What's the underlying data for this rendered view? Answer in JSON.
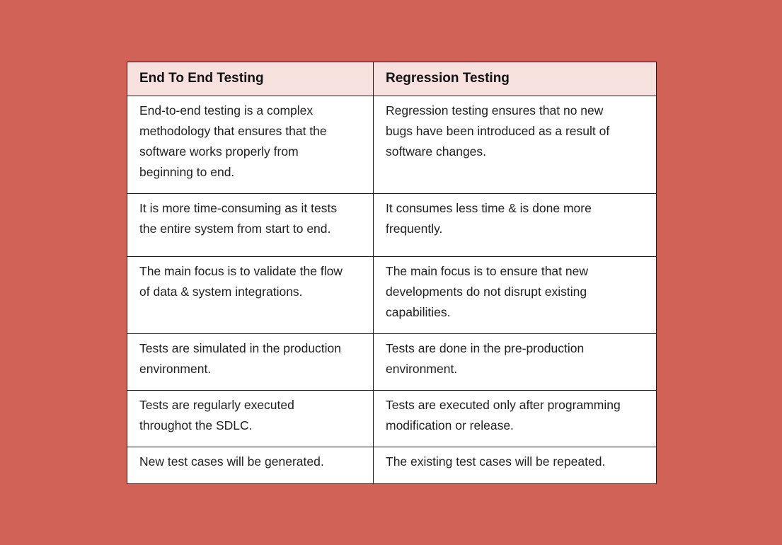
{
  "colors": {
    "background": "#D06257",
    "header_bg": "#F6E1DE",
    "border": "#1a1a1a"
  },
  "table": {
    "headers": [
      "End To End Testing",
      "Regression Testing"
    ],
    "rows": [
      [
        "End-to-end testing is a complex methodology that ensures that the software works properly from beginning to end.",
        "Regression testing ensures that no new bugs have been introduced as a result of software changes."
      ],
      [
        "It is more time-consuming as it tests the entire system from start to end.",
        "It consumes less time & is done more frequently."
      ],
      [
        "The main focus is to validate the flow of data & system integrations.",
        "The main focus is to ensure that new developments do not disrupt existing capabilities."
      ],
      [
        "Tests are simulated in the production environment.",
        "Tests are done in the pre-production environment."
      ],
      [
        "Tests are regularly executed throughot the SDLC.",
        "Tests are executed only after programming modification or release."
      ],
      [
        "New test cases will be generated.",
        "The existing test cases will be repeated."
      ]
    ]
  }
}
